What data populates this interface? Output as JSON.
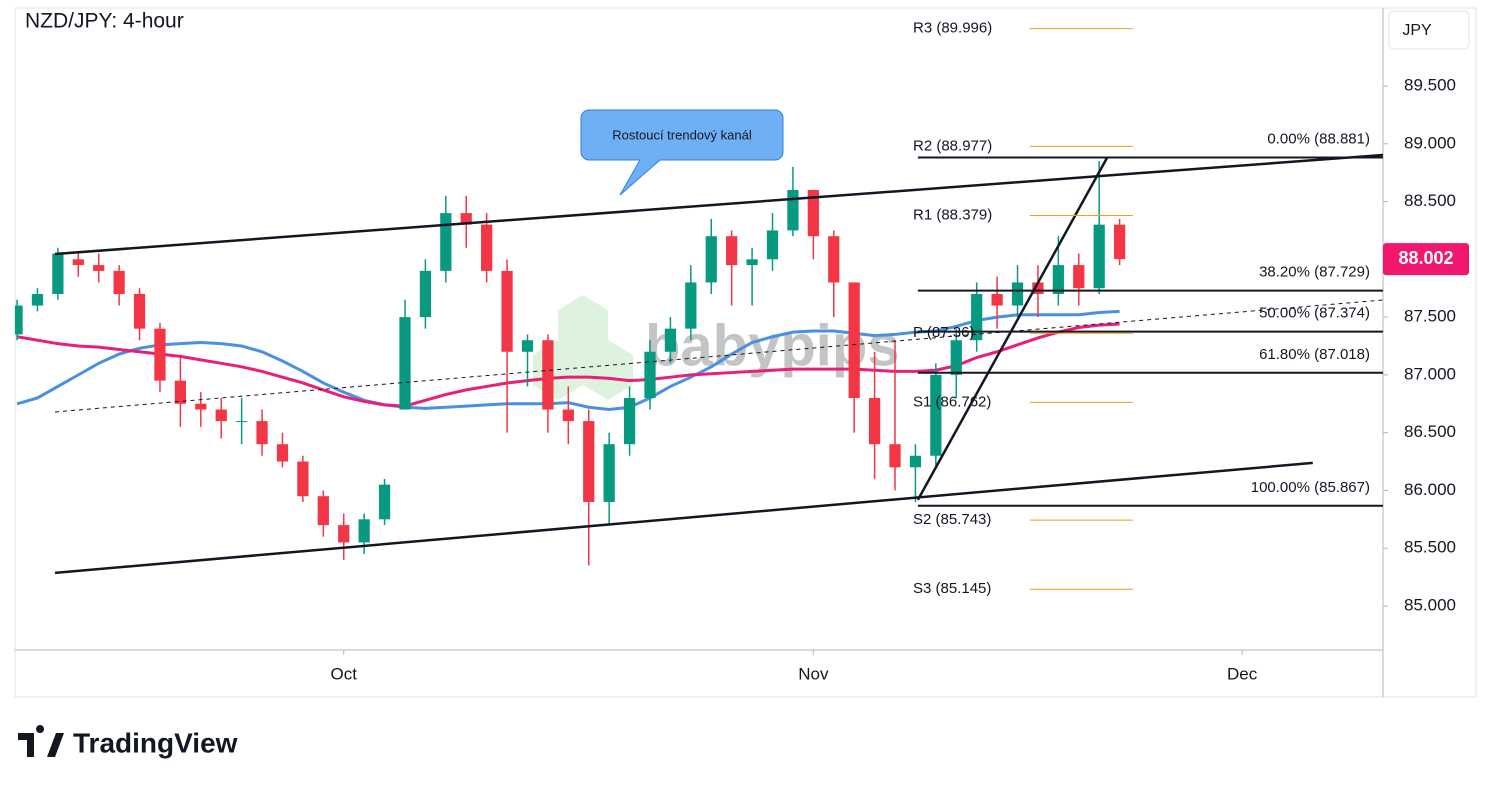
{
  "chart_data": {
    "type": "candlestick",
    "title": "NZD/JPY: 4-hour",
    "y_axis_label": "JPY",
    "x": [
      0,
      1,
      2,
      3,
      4,
      5,
      6,
      7,
      8,
      9,
      10,
      11,
      12,
      13,
      14,
      15,
      16,
      17,
      18,
      19,
      20,
      21,
      22,
      23,
      24,
      25,
      26,
      27,
      28,
      29,
      30,
      31,
      32,
      33,
      34,
      35,
      36,
      37,
      38,
      39,
      40,
      41,
      42,
      43,
      44,
      45,
      46,
      47,
      48,
      49,
      50,
      51,
      52,
      53,
      54
    ],
    "open": [
      87.35,
      87.6,
      87.7,
      88.0,
      87.95,
      87.9,
      87.7,
      87.4,
      86.95,
      86.75,
      86.7,
      86.6,
      86.6,
      86.4,
      86.25,
      85.95,
      85.7,
      85.55,
      85.75,
      86.7,
      87.5,
      87.9,
      88.4,
      88.3,
      87.9,
      87.2,
      87.3,
      86.7,
      86.6,
      85.9,
      86.4,
      86.8,
      87.2,
      87.4,
      87.8,
      88.2,
      87.95,
      88.0,
      88.25,
      88.6,
      88.2,
      87.8,
      86.8,
      86.4,
      86.2,
      86.3,
      87.0,
      87.3,
      87.7,
      87.6,
      87.8,
      87.7,
      87.95,
      87.75,
      88.3
    ],
    "high": [
      87.65,
      87.75,
      88.1,
      88.05,
      88.05,
      87.95,
      87.75,
      87.45,
      87.15,
      86.85,
      86.8,
      86.8,
      86.7,
      86.5,
      86.3,
      86.0,
      85.8,
      85.8,
      86.1,
      87.65,
      88.0,
      88.55,
      88.55,
      88.4,
      88.0,
      87.35,
      87.35,
      86.9,
      86.7,
      86.5,
      86.9,
      87.3,
      87.5,
      87.95,
      88.35,
      88.25,
      88.1,
      88.4,
      88.8,
      88.6,
      88.25,
      87.8,
      87.2,
      87.3,
      86.4,
      87.1,
      87.4,
      87.8,
      87.85,
      87.95,
      87.95,
      88.2,
      88.05,
      88.85,
      88.35
    ],
    "low": [
      87.3,
      87.55,
      87.65,
      87.85,
      87.8,
      87.6,
      87.3,
      86.85,
      86.55,
      86.55,
      86.45,
      86.4,
      86.3,
      86.2,
      85.9,
      85.6,
      85.4,
      85.45,
      85.7,
      86.7,
      87.4,
      87.8,
      88.1,
      87.8,
      86.5,
      86.9,
      86.5,
      86.4,
      85.35,
      85.7,
      86.3,
      86.7,
      87.1,
      87.3,
      87.7,
      87.6,
      87.6,
      87.9,
      88.2,
      88.0,
      87.5,
      86.5,
      86.1,
      86.0,
      85.9,
      86.2,
      86.8,
      87.2,
      87.4,
      87.5,
      87.5,
      87.6,
      87.6,
      87.7,
      87.95
    ],
    "close": [
      87.6,
      87.7,
      88.05,
      87.95,
      87.9,
      87.7,
      87.4,
      86.95,
      86.75,
      86.7,
      86.6,
      86.6,
      86.4,
      86.25,
      85.95,
      85.7,
      85.55,
      85.75,
      86.05,
      87.5,
      87.9,
      88.4,
      88.3,
      87.9,
      87.2,
      87.3,
      86.7,
      86.6,
      85.9,
      86.4,
      86.8,
      87.2,
      87.4,
      87.8,
      88.2,
      87.95,
      88.0,
      88.25,
      88.6,
      88.2,
      87.8,
      86.8,
      86.4,
      86.2,
      86.3,
      87.0,
      87.3,
      87.7,
      87.6,
      87.8,
      87.7,
      87.95,
      87.75,
      88.3,
      88.002
    ],
    "up_color": "#089981",
    "down_color": "#f23645",
    "moving_averages": [
      {
        "color": "#4a90e2",
        "values": [
          86.75,
          86.8,
          86.9,
          87.0,
          87.1,
          87.18,
          87.23,
          87.26,
          87.27,
          87.28,
          87.27,
          87.25,
          87.2,
          87.12,
          87.03,
          86.93,
          86.85,
          86.78,
          86.74,
          86.72,
          86.71,
          86.72,
          86.73,
          86.74,
          86.75,
          86.75,
          86.75,
          86.76,
          86.72,
          86.7,
          86.72,
          86.8,
          86.9,
          86.98,
          87.07,
          87.18,
          87.28,
          87.33,
          87.37,
          87.38,
          87.38,
          87.36,
          87.34,
          87.35,
          87.37,
          87.38,
          87.42,
          87.47,
          87.5,
          87.52,
          87.52,
          87.52,
          87.52,
          87.54,
          87.55
        ]
      },
      {
        "color": "#e91e7a",
        "values": [
          87.33,
          87.3,
          87.27,
          87.25,
          87.24,
          87.22,
          87.2,
          87.18,
          87.16,
          87.13,
          87.1,
          87.07,
          87.03,
          86.98,
          86.93,
          86.87,
          86.81,
          86.77,
          86.74,
          86.73,
          86.78,
          86.83,
          86.87,
          86.9,
          86.93,
          86.95,
          86.97,
          86.98,
          86.98,
          86.97,
          86.95,
          86.96,
          86.98,
          87.0,
          87.01,
          87.02,
          87.03,
          87.04,
          87.05,
          87.05,
          87.05,
          87.05,
          87.04,
          87.03,
          87.03,
          87.04,
          87.08,
          87.15,
          87.2,
          87.26,
          87.32,
          87.37,
          87.41,
          87.43,
          87.44
        ]
      }
    ],
    "xlim": [
      -0.1,
      66.9
    ],
    "ylim": [
      84.619,
      90.175
    ],
    "xticks": [
      {
        "value": 16,
        "label": "Oct"
      },
      {
        "value": 39,
        "label": "Nov"
      },
      {
        "value": 60,
        "label": "Dec"
      }
    ],
    "yticks": [
      {
        "value": 85.0,
        "label": "85.000"
      },
      {
        "value": 85.5,
        "label": "85.500"
      },
      {
        "value": 86.0,
        "label": "86.000"
      },
      {
        "value": 86.5,
        "label": "86.500"
      },
      {
        "value": 87.0,
        "label": "87.000"
      },
      {
        "value": 87.5,
        "label": "87.500"
      },
      {
        "value": 88.0,
        "label": "88.000"
      },
      {
        "value": 88.5,
        "label": "88.500"
      },
      {
        "value": 89.0,
        "label": "89.000"
      },
      {
        "value": 89.5,
        "label": "89.500"
      }
    ],
    "last_price": 88.002,
    "last_price_color": "#f2166e",
    "trendlines": [
      {
        "x": [
          1.86,
          66.9
        ],
        "y": [
          88.046,
          88.903
        ],
        "dashed": false
      },
      {
        "x": [
          1.86,
          63.46
        ],
        "y": [
          85.286,
          86.238
        ],
        "dashed": false
      },
      {
        "x": [
          1.86,
          66.9
        ],
        "y": [
          86.679,
          87.648
        ],
        "dashed": true
      },
      {
        "x": [
          44.12,
          53.38
        ],
        "y": [
          85.918,
          88.877
        ],
        "dashed": false
      }
    ],
    "fib_range": [
      44.12,
      66.9
    ],
    "fib_levels": [
      {
        "value": 88.881,
        "label": "0.00% (88.881)"
      },
      {
        "value": 87.729,
        "label": "38.20% (87.729)"
      },
      {
        "value": 87.374,
        "label": "50.00% (87.374)"
      },
      {
        "value": 87.018,
        "label": "61.80% (87.018)"
      },
      {
        "value": 85.867,
        "label": "100.00% (85.867)"
      }
    ],
    "pivot_range": [
      49.6,
      54.65
    ],
    "pivot_color": "#f59c1a",
    "pivots": [
      {
        "value": 89.996,
        "label": "R3 (89.996)",
        "color": "#f59c1a"
      },
      {
        "value": 88.977,
        "label": "R2 (88.977)",
        "color": "#f59c1a"
      },
      {
        "value": 88.379,
        "label": "R1 (88.379)",
        "color": "#f59c1a"
      },
      {
        "value": 87.36,
        "label": "P (87.36)",
        "color": "#131722"
      },
      {
        "value": 86.762,
        "label": "S1 (86.762)",
        "color": "#f59c1a"
      },
      {
        "value": 85.743,
        "label": "S2 (85.743)",
        "color": "#f59c1a"
      },
      {
        "value": 85.145,
        "label": "S3 (85.145)",
        "color": "#f59c1a"
      }
    ],
    "callout": "Rostoucí trendový kanál",
    "watermark": "babypips",
    "brand": "TradingView"
  }
}
